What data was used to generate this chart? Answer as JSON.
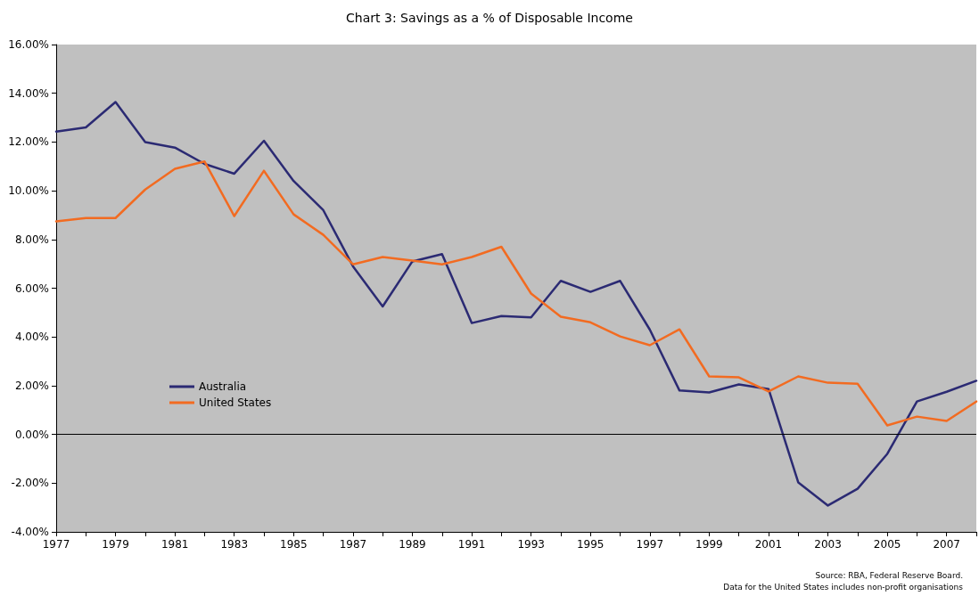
{
  "chart_data": {
    "type": "line",
    "title": "Chart 3: Savings as a % of Disposable Income",
    "categories": [
      "1977",
      null,
      "1979",
      null,
      "1981",
      null,
      "1983",
      null,
      "1985",
      null,
      "1987",
      null,
      "1989",
      null,
      "1991",
      null,
      "1993",
      null,
      "1995",
      null,
      "1997",
      null,
      "1999",
      null,
      "2001",
      null,
      "2003",
      null,
      "2005",
      null,
      "2007",
      null
    ],
    "series": [
      {
        "name": "Australia",
        "color": "#2b2a73",
        "values": [
          12.43,
          12.6,
          13.64,
          12.0,
          11.77,
          11.1,
          10.7,
          12.05,
          10.4,
          9.2,
          6.9,
          5.25,
          7.1,
          7.4,
          4.57,
          4.86,
          4.8,
          6.3,
          5.85,
          6.3,
          4.3,
          1.8,
          1.72,
          2.05,
          1.86,
          -1.97,
          -2.92,
          -2.23,
          -0.8,
          1.35,
          1.75,
          2.2
        ]
      },
      {
        "name": "United States",
        "color": "#f26b21",
        "values": [
          8.74,
          8.88,
          8.88,
          10.05,
          10.9,
          11.2,
          8.96,
          10.82,
          9.03,
          8.19,
          6.98,
          7.28,
          7.13,
          6.98,
          7.28,
          7.7,
          5.78,
          4.83,
          4.6,
          4.02,
          3.66,
          4.31,
          2.38,
          2.34,
          1.76,
          2.38,
          2.12,
          2.08,
          0.37,
          0.73,
          0.55,
          1.35
        ]
      }
    ],
    "ylim": [
      -4,
      16
    ],
    "yticks": [
      {
        "value": -4,
        "label": "-4.00%"
      },
      {
        "value": -2,
        "label": "-2.00%"
      },
      {
        "value": 0,
        "label": "0.00%"
      },
      {
        "value": 2,
        "label": "2.00%"
      },
      {
        "value": 4,
        "label": "4.00%"
      },
      {
        "value": 6,
        "label": "6.00%"
      },
      {
        "value": 8,
        "label": "8.00%"
      },
      {
        "value": 10,
        "label": "10.00%"
      },
      {
        "value": 12,
        "label": "12.00%"
      },
      {
        "value": 14,
        "label": "14.00%"
      },
      {
        "value": 16,
        "label": "16.00%"
      }
    ],
    "ref_lines": [
      {
        "axis": "y",
        "value": 0,
        "color": "#000000"
      }
    ],
    "grid": false,
    "legend": "bottom left",
    "marker": "none",
    "line_style": "solid",
    "annotations": [
      "Source: RBA, Federal Reserve Board.",
      "Data for the United States includes non-profit organisations"
    ]
  }
}
